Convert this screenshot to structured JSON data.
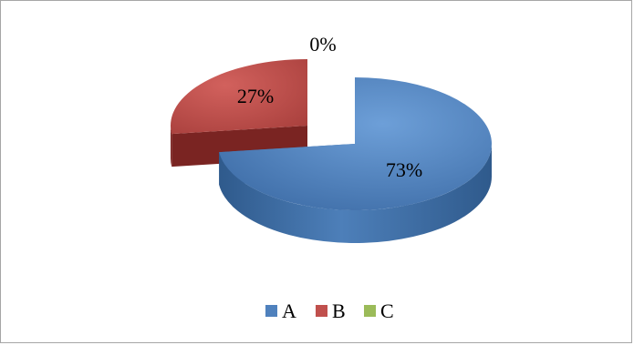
{
  "chart_data": {
    "type": "pie",
    "categories": [
      "A",
      "B",
      "C"
    ],
    "values": [
      73,
      27,
      0
    ],
    "value_labels": [
      "73%",
      "27%",
      "0%"
    ],
    "colors": [
      "#4f81bd",
      "#c0504d",
      "#9bbb59"
    ],
    "title": "",
    "legend_position": "bottom",
    "style": "3d-exploded"
  }
}
